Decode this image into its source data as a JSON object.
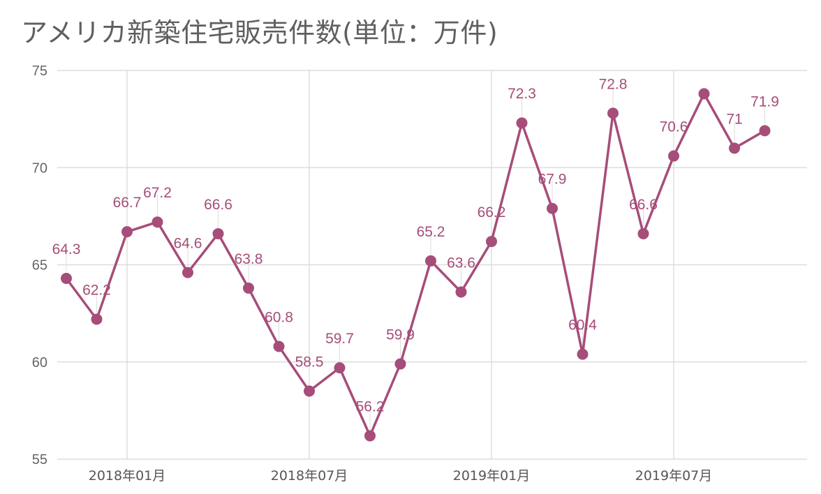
{
  "chart_data": {
    "type": "line",
    "title": "アメリカ新築住宅販売件数(単位：万件)",
    "x": [
      "2017-11",
      "2017-12",
      "2018-01",
      "2018-02",
      "2018-03",
      "2018-04",
      "2018-05",
      "2018-06",
      "2018-07",
      "2018-08",
      "2018-09",
      "2018-10",
      "2018-11",
      "2018-12",
      "2019-01",
      "2019-02",
      "2019-03",
      "2019-04",
      "2019-05",
      "2019-06",
      "2019-07",
      "2019-08",
      "2019-09",
      "2019-10"
    ],
    "series": [
      {
        "values": [
          64.3,
          62.2,
          66.7,
          67.2,
          64.6,
          66.6,
          63.8,
          60.8,
          58.5,
          59.7,
          56.2,
          59.9,
          65.2,
          63.6,
          66.2,
          72.3,
          67.9,
          60.4,
          72.8,
          66.6,
          70.6,
          73.8,
          71,
          71.9
        ],
        "labels": [
          "64.3",
          "62.2",
          "66.7",
          "67.2",
          "64.6",
          "66.6",
          "63.8",
          "60.8",
          "58.5",
          "59.7",
          "56.2",
          "59.9",
          "65.2",
          "63.6",
          "66.2",
          "72.3",
          "67.9",
          "60.4",
          "72.8",
          "66.6",
          "70.6",
          "",
          "71",
          "71.9"
        ],
        "color": "#a64d79"
      }
    ],
    "ylim": [
      55,
      75
    ],
    "yticks": [
      55,
      60,
      65,
      70,
      75
    ],
    "xtick_labels": [
      {
        "index": 2,
        "label": "2018年01月"
      },
      {
        "index": 8,
        "label": "2018年07月"
      },
      {
        "index": 14,
        "label": "2019年01月"
      },
      {
        "index": 20,
        "label": "2019年07月"
      }
    ],
    "grid": true,
    "legend": "none"
  }
}
